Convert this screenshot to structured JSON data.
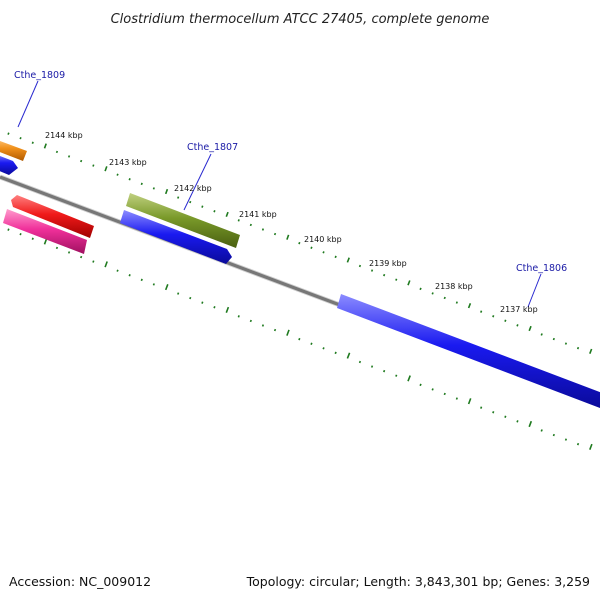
{
  "title": "Clostridium thermocellum ATCC 27405, complete genome",
  "footer": {
    "accession": "Accession: NC_009012",
    "summary": "Topology: circular; Length: 3,843,301 bp; Genes: 3,259"
  },
  "colors": {
    "backbone": "#7f7f7f",
    "ticks": "#1f7a1f",
    "gene_label": "#1a1aa6",
    "label_line": "#2a2ad0",
    "orange": "#f0901a",
    "blue": "#1a1af0",
    "red": "#f01a1a",
    "pink": "#f0309a",
    "olive": "#7a9a2a"
  },
  "tick_labels": [
    "2144 kbp",
    "2143 kbp",
    "2142 kbp",
    "2141 kbp",
    "2140 kbp",
    "2139 kbp",
    "2138 kbp",
    "2137 kbp"
  ],
  "gene_labels": [
    "Cthe_1809",
    "Cthe_1807",
    "Cthe_1806"
  ]
}
